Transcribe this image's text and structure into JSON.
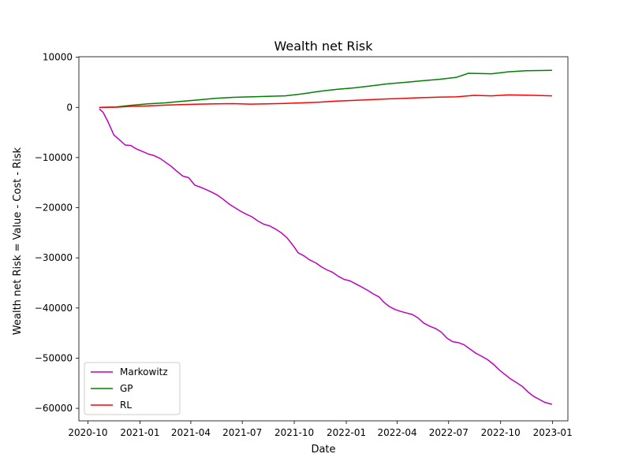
{
  "chart_data": {
    "type": "line",
    "title": "Wealth net Risk",
    "xlabel": "Date",
    "ylabel": "Wealth net Risk = Value - Cost - Risk",
    "x_start": "2020-10-21",
    "x_end": "2022-12-31",
    "xlim": [
      "2020-09-15",
      "2023-01-28"
    ],
    "ylim": [
      -62500,
      10100
    ],
    "x_ticks": [
      {
        "date": "2020-10-01",
        "label": "2020-10"
      },
      {
        "date": "2021-01-01",
        "label": "2021-01"
      },
      {
        "date": "2021-04-01",
        "label": "2021-04"
      },
      {
        "date": "2021-07-01",
        "label": "2021-07"
      },
      {
        "date": "2021-10-01",
        "label": "2021-10"
      },
      {
        "date": "2022-01-01",
        "label": "2022-01"
      },
      {
        "date": "2022-04-01",
        "label": "2022-04"
      },
      {
        "date": "2022-07-01",
        "label": "2022-07"
      },
      {
        "date": "2022-10-01",
        "label": "2022-10"
      },
      {
        "date": "2023-01-01",
        "label": "2023-01"
      }
    ],
    "y_ticks": [
      {
        "value": 10000,
        "label": "10000"
      },
      {
        "value": 0,
        "label": "0"
      },
      {
        "value": -10000,
        "label": "−10000"
      },
      {
        "value": -20000,
        "label": "−20000"
      },
      {
        "value": -30000,
        "label": "−30000"
      },
      {
        "value": -40000,
        "label": "−40000"
      },
      {
        "value": -50000,
        "label": "−50000"
      },
      {
        "value": -60000,
        "label": "−60000"
      }
    ],
    "grid": false,
    "legend_position": "lower-left",
    "series": [
      {
        "name": "Markowitz",
        "color": "#bf00bf",
        "points": [
          [
            "2020-10-21",
            -300
          ],
          [
            "2020-10-28",
            -1000
          ],
          [
            "2020-11-06",
            -3000
          ],
          [
            "2020-11-16",
            -5500
          ],
          [
            "2020-11-26",
            -6500
          ],
          [
            "2020-12-06",
            -7500
          ],
          [
            "2020-12-16",
            -7600
          ],
          [
            "2020-12-26",
            -8300
          ],
          [
            "2021-01-06",
            -8800
          ],
          [
            "2021-01-16",
            -9300
          ],
          [
            "2021-01-26",
            -9600
          ],
          [
            "2021-02-06",
            -10200
          ],
          [
            "2021-02-16",
            -11000
          ],
          [
            "2021-02-26",
            -11800
          ],
          [
            "2021-03-08",
            -12800
          ],
          [
            "2021-03-18",
            -13700
          ],
          [
            "2021-03-28",
            -14000
          ],
          [
            "2021-04-08",
            -15500
          ],
          [
            "2021-04-18",
            -15900
          ],
          [
            "2021-04-28",
            -16400
          ],
          [
            "2021-05-08",
            -16900
          ],
          [
            "2021-05-18",
            -17500
          ],
          [
            "2021-05-28",
            -18300
          ],
          [
            "2021-06-08",
            -19300
          ],
          [
            "2021-06-18",
            -20000
          ],
          [
            "2021-06-28",
            -20700
          ],
          [
            "2021-07-08",
            -21300
          ],
          [
            "2021-07-18",
            -21800
          ],
          [
            "2021-07-28",
            -22600
          ],
          [
            "2021-08-08",
            -23300
          ],
          [
            "2021-08-18",
            -23600
          ],
          [
            "2021-08-28",
            -24200
          ],
          [
            "2021-09-08",
            -25000
          ],
          [
            "2021-09-18",
            -26000
          ],
          [
            "2021-09-28",
            -27400
          ],
          [
            "2021-10-08",
            -29000
          ],
          [
            "2021-10-18",
            -29600
          ],
          [
            "2021-10-28",
            -30400
          ],
          [
            "2021-11-08",
            -31000
          ],
          [
            "2021-11-18",
            -31800
          ],
          [
            "2021-11-28",
            -32400
          ],
          [
            "2021-12-08",
            -32900
          ],
          [
            "2021-12-18",
            -33700
          ],
          [
            "2021-12-28",
            -34300
          ],
          [
            "2022-01-08",
            -34600
          ],
          [
            "2022-01-18",
            -35200
          ],
          [
            "2022-01-28",
            -35800
          ],
          [
            "2022-02-08",
            -36500
          ],
          [
            "2022-02-18",
            -37200
          ],
          [
            "2022-02-28",
            -37800
          ],
          [
            "2022-03-08",
            -38800
          ],
          [
            "2022-03-18",
            -39700
          ],
          [
            "2022-03-28",
            -40300
          ],
          [
            "2022-04-08",
            -40700
          ],
          [
            "2022-04-18",
            -41000
          ],
          [
            "2022-04-28",
            -41300
          ],
          [
            "2022-05-08",
            -42000
          ],
          [
            "2022-05-18",
            -43000
          ],
          [
            "2022-05-28",
            -43600
          ],
          [
            "2022-06-08",
            -44100
          ],
          [
            "2022-06-18",
            -44800
          ],
          [
            "2022-06-28",
            -46000
          ],
          [
            "2022-07-08",
            -46700
          ],
          [
            "2022-07-18",
            -46900
          ],
          [
            "2022-07-28",
            -47300
          ],
          [
            "2022-08-08",
            -48200
          ],
          [
            "2022-08-18",
            -49000
          ],
          [
            "2022-08-28",
            -49600
          ],
          [
            "2022-09-08",
            -50300
          ],
          [
            "2022-09-18",
            -51200
          ],
          [
            "2022-09-28",
            -52300
          ],
          [
            "2022-10-08",
            -53200
          ],
          [
            "2022-10-18",
            -54100
          ],
          [
            "2022-10-28",
            -54800
          ],
          [
            "2022-11-08",
            -55600
          ],
          [
            "2022-11-18",
            -56700
          ],
          [
            "2022-11-28",
            -57600
          ],
          [
            "2022-12-08",
            -58200
          ],
          [
            "2022-12-18",
            -58800
          ],
          [
            "2022-12-31",
            -59200
          ]
        ]
      },
      {
        "name": "GP",
        "color": "#008000",
        "points": [
          [
            "2020-10-21",
            0
          ],
          [
            "2020-11-21",
            100
          ],
          [
            "2020-12-15",
            400
          ],
          [
            "2021-01-15",
            700
          ],
          [
            "2021-02-15",
            900
          ],
          [
            "2021-03-15",
            1200
          ],
          [
            "2021-04-15",
            1500
          ],
          [
            "2021-05-15",
            1800
          ],
          [
            "2021-06-15",
            2000
          ],
          [
            "2021-07-15",
            2100
          ],
          [
            "2021-08-15",
            2200
          ],
          [
            "2021-09-15",
            2300
          ],
          [
            "2021-10-15",
            2700
          ],
          [
            "2021-11-15",
            3200
          ],
          [
            "2021-12-15",
            3600
          ],
          [
            "2022-01-15",
            3900
          ],
          [
            "2022-02-15",
            4300
          ],
          [
            "2022-03-15",
            4700
          ],
          [
            "2022-04-15",
            5000
          ],
          [
            "2022-05-15",
            5300
          ],
          [
            "2022-06-15",
            5600
          ],
          [
            "2022-07-15",
            6000
          ],
          [
            "2022-08-05",
            6800
          ],
          [
            "2022-09-15",
            6700
          ],
          [
            "2022-10-15",
            7100
          ],
          [
            "2022-11-15",
            7300
          ],
          [
            "2022-12-31",
            7400
          ]
        ]
      },
      {
        "name": "RL",
        "color": "#ff0000",
        "points": [
          [
            "2020-10-21",
            0
          ],
          [
            "2020-11-21",
            50
          ],
          [
            "2020-12-15",
            200
          ],
          [
            "2021-01-15",
            300
          ],
          [
            "2021-02-15",
            450
          ],
          [
            "2021-03-15",
            550
          ],
          [
            "2021-04-15",
            650
          ],
          [
            "2021-05-15",
            700
          ],
          [
            "2021-06-15",
            750
          ],
          [
            "2021-07-15",
            650
          ],
          [
            "2021-08-15",
            700
          ],
          [
            "2021-09-15",
            800
          ],
          [
            "2021-10-15",
            900
          ],
          [
            "2021-11-15",
            1050
          ],
          [
            "2021-12-15",
            1250
          ],
          [
            "2022-01-15",
            1400
          ],
          [
            "2022-02-15",
            1550
          ],
          [
            "2022-03-15",
            1700
          ],
          [
            "2022-04-15",
            1800
          ],
          [
            "2022-05-15",
            1950
          ],
          [
            "2022-06-15",
            2050
          ],
          [
            "2022-07-15",
            2100
          ],
          [
            "2022-08-15",
            2400
          ],
          [
            "2022-09-15",
            2300
          ],
          [
            "2022-10-15",
            2500
          ],
          [
            "2022-11-15",
            2450
          ],
          [
            "2022-12-31",
            2300
          ]
        ]
      }
    ]
  }
}
